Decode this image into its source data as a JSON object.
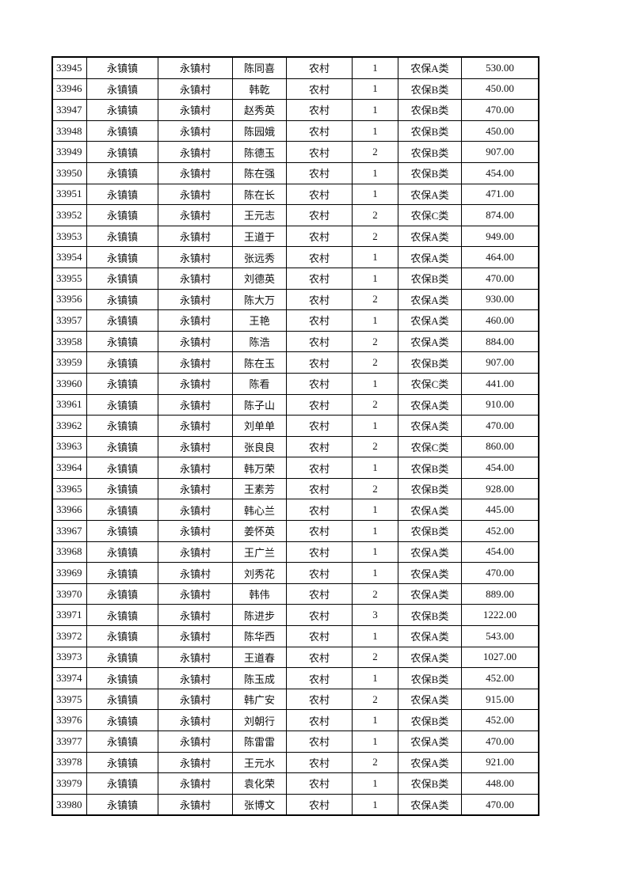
{
  "table": {
    "rows": [
      [
        "33945",
        "永镇镇",
        "永镇村",
        "陈同喜",
        "农村",
        "1",
        "农保A类",
        "530.00"
      ],
      [
        "33946",
        "永镇镇",
        "永镇村",
        "韩乾",
        "农村",
        "1",
        "农保B类",
        "450.00"
      ],
      [
        "33947",
        "永镇镇",
        "永镇村",
        "赵秀英",
        "农村",
        "1",
        "农保B类",
        "470.00"
      ],
      [
        "33948",
        "永镇镇",
        "永镇村",
        "陈园娥",
        "农村",
        "1",
        "农保B类",
        "450.00"
      ],
      [
        "33949",
        "永镇镇",
        "永镇村",
        "陈德玉",
        "农村",
        "2",
        "农保B类",
        "907.00"
      ],
      [
        "33950",
        "永镇镇",
        "永镇村",
        "陈在强",
        "农村",
        "1",
        "农保B类",
        "454.00"
      ],
      [
        "33951",
        "永镇镇",
        "永镇村",
        "陈在长",
        "农村",
        "1",
        "农保A类",
        "471.00"
      ],
      [
        "33952",
        "永镇镇",
        "永镇村",
        "王元志",
        "农村",
        "2",
        "农保C类",
        "874.00"
      ],
      [
        "33953",
        "永镇镇",
        "永镇村",
        "王道于",
        "农村",
        "2",
        "农保A类",
        "949.00"
      ],
      [
        "33954",
        "永镇镇",
        "永镇村",
        "张远秀",
        "农村",
        "1",
        "农保A类",
        "464.00"
      ],
      [
        "33955",
        "永镇镇",
        "永镇村",
        "刘德英",
        "农村",
        "1",
        "农保B类",
        "470.00"
      ],
      [
        "33956",
        "永镇镇",
        "永镇村",
        "陈大万",
        "农村",
        "2",
        "农保A类",
        "930.00"
      ],
      [
        "33957",
        "永镇镇",
        "永镇村",
        "王艳",
        "农村",
        "1",
        "农保A类",
        "460.00"
      ],
      [
        "33958",
        "永镇镇",
        "永镇村",
        "陈浩",
        "农村",
        "2",
        "农保A类",
        "884.00"
      ],
      [
        "33959",
        "永镇镇",
        "永镇村",
        "陈在玉",
        "农村",
        "2",
        "农保B类",
        "907.00"
      ],
      [
        "33960",
        "永镇镇",
        "永镇村",
        "陈看",
        "农村",
        "1",
        "农保C类",
        "441.00"
      ],
      [
        "33961",
        "永镇镇",
        "永镇村",
        "陈子山",
        "农村",
        "2",
        "农保A类",
        "910.00"
      ],
      [
        "33962",
        "永镇镇",
        "永镇村",
        "刘单单",
        "农村",
        "1",
        "农保A类",
        "470.00"
      ],
      [
        "33963",
        "永镇镇",
        "永镇村",
        "张良良",
        "农村",
        "2",
        "农保C类",
        "860.00"
      ],
      [
        "33964",
        "永镇镇",
        "永镇村",
        "韩万荣",
        "农村",
        "1",
        "农保B类",
        "454.00"
      ],
      [
        "33965",
        "永镇镇",
        "永镇村",
        "王素芳",
        "农村",
        "2",
        "农保B类",
        "928.00"
      ],
      [
        "33966",
        "永镇镇",
        "永镇村",
        "韩心兰",
        "农村",
        "1",
        "农保A类",
        "445.00"
      ],
      [
        "33967",
        "永镇镇",
        "永镇村",
        "姜怀英",
        "农村",
        "1",
        "农保B类",
        "452.00"
      ],
      [
        "33968",
        "永镇镇",
        "永镇村",
        "王广兰",
        "农村",
        "1",
        "农保A类",
        "454.00"
      ],
      [
        "33969",
        "永镇镇",
        "永镇村",
        "刘秀花",
        "农村",
        "1",
        "农保A类",
        "470.00"
      ],
      [
        "33970",
        "永镇镇",
        "永镇村",
        "韩伟",
        "农村",
        "2",
        "农保A类",
        "889.00"
      ],
      [
        "33971",
        "永镇镇",
        "永镇村",
        "陈进步",
        "农村",
        "3",
        "农保B类",
        "1222.00"
      ],
      [
        "33972",
        "永镇镇",
        "永镇村",
        "陈华西",
        "农村",
        "1",
        "农保A类",
        "543.00"
      ],
      [
        "33973",
        "永镇镇",
        "永镇村",
        "王道春",
        "农村",
        "2",
        "农保A类",
        "1027.00"
      ],
      [
        "33974",
        "永镇镇",
        "永镇村",
        "陈玉成",
        "农村",
        "1",
        "农保B类",
        "452.00"
      ],
      [
        "33975",
        "永镇镇",
        "永镇村",
        "韩广安",
        "农村",
        "2",
        "农保A类",
        "915.00"
      ],
      [
        "33976",
        "永镇镇",
        "永镇村",
        "刘朝行",
        "农村",
        "1",
        "农保B类",
        "452.00"
      ],
      [
        "33977",
        "永镇镇",
        "永镇村",
        "陈雷雷",
        "农村",
        "1",
        "农保A类",
        "470.00"
      ],
      [
        "33978",
        "永镇镇",
        "永镇村",
        "王元水",
        "农村",
        "2",
        "农保A类",
        "921.00"
      ],
      [
        "33979",
        "永镇镇",
        "永镇村",
        "袁化荣",
        "农村",
        "1",
        "农保B类",
        "448.00"
      ],
      [
        "33980",
        "永镇镇",
        "永镇村",
        "张博文",
        "农村",
        "1",
        "农保A类",
        "470.00"
      ]
    ]
  }
}
